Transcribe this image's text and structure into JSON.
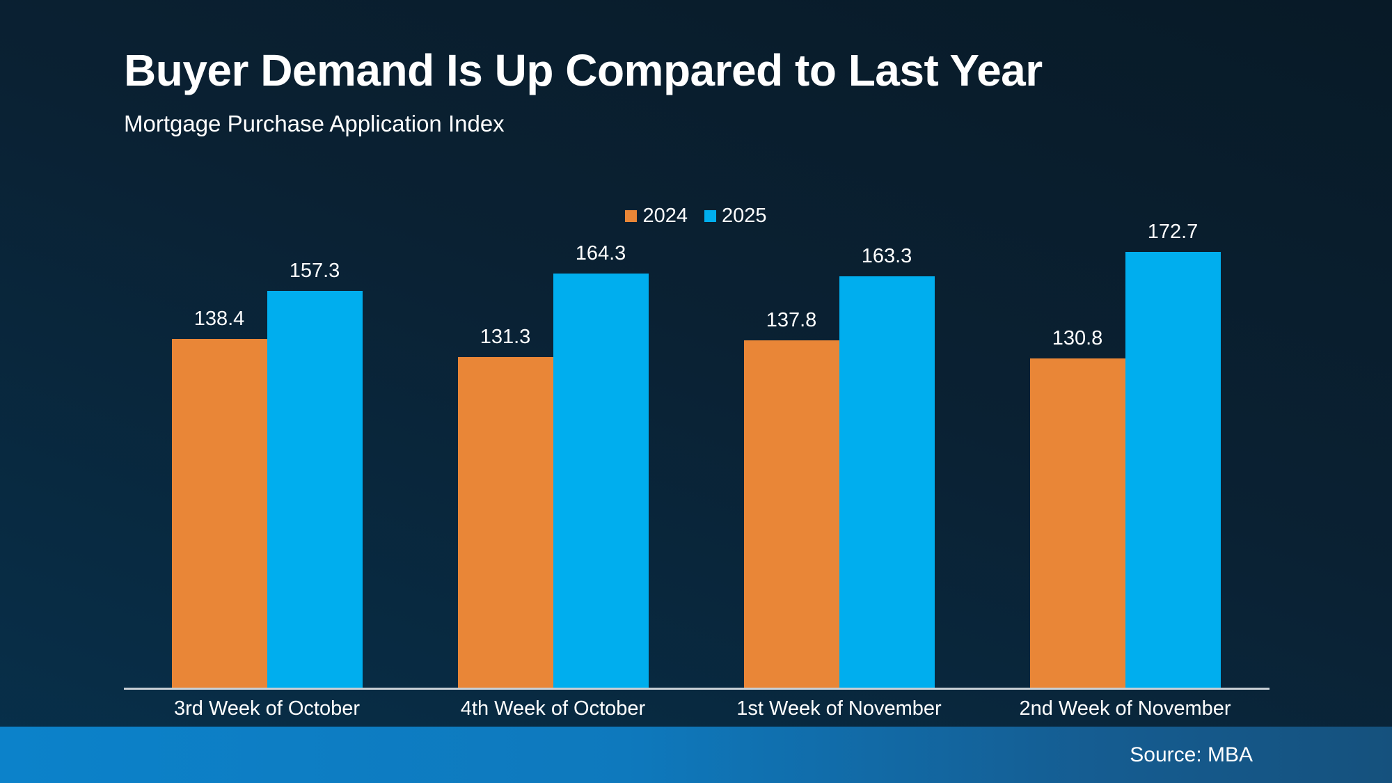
{
  "footer": {
    "source": "Source: MBA"
  },
  "colors": {
    "background_top": "#081a27",
    "background_bottom": "#07304b",
    "text": "#ffffff",
    "axis_line": "#c9d0d6",
    "series_2024": "#e98637",
    "series_2025": "#00aeee",
    "footer_gradient_left": "#0c82ca",
    "footer_gradient_right": "#15517d"
  },
  "chart_data": {
    "type": "bar",
    "title": "Buyer Demand Is Up Compared to Last Year",
    "subtitle": "Mortgage Purchase Application Index",
    "categories": [
      "3rd Week of October",
      "4th Week of October",
      "1st Week of November",
      "2nd Week of November"
    ],
    "series": [
      {
        "name": "2024",
        "color": "#e98637",
        "values": [
          138.4,
          131.3,
          137.8,
          130.8
        ]
      },
      {
        "name": "2025",
        "color": "#00aeee",
        "values": [
          157.3,
          164.3,
          163.3,
          172.7
        ]
      }
    ],
    "ylabel": "",
    "xlabel": "",
    "ylim": [
      0,
      190
    ],
    "grid": false,
    "legend_position": "top-center",
    "value_labels": true
  }
}
